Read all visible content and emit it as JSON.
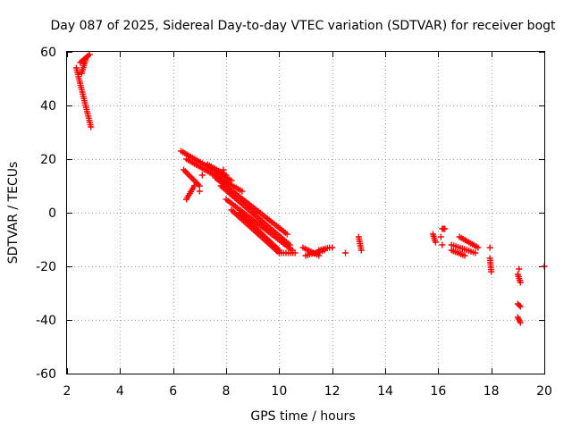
{
  "chart_data": {
    "type": "scatter",
    "title": "Day 087 of 2025, Sidereal Day-to-day VTEC variation (SDTVAR) for receiver bogt",
    "xlabel": "GPS time / hours",
    "ylabel": "SDTVAR / TECUs",
    "xlim": [
      2,
      20
    ],
    "ylim": [
      -60,
      60
    ],
    "xticks": [
      2,
      4,
      6,
      8,
      10,
      12,
      14,
      16,
      18,
      20
    ],
    "yticks": [
      -60,
      -40,
      -20,
      0,
      20,
      40,
      60
    ],
    "grid": true,
    "marker": "+",
    "marker_color": "#ff0000",
    "segments": [
      {
        "x": [
          2.35,
          2.9
        ],
        "y": [
          54,
          32
        ]
      },
      {
        "x": [
          2.5,
          2.85
        ],
        "y": [
          56,
          59
        ]
      },
      {
        "x": [
          2.55,
          2.7
        ],
        "y": [
          52,
          57
        ]
      },
      {
        "x": [
          6.3,
          8.2
        ],
        "y": [
          23,
          12
        ]
      },
      {
        "x": [
          6.5,
          8.6
        ],
        "y": [
          20,
          8
        ]
      },
      {
        "x": [
          6.4,
          7.0
        ],
        "y": [
          16,
          10
        ]
      },
      {
        "x": [
          6.5,
          6.8
        ],
        "y": [
          5,
          10
        ]
      },
      {
        "x": [
          7.3,
          8.0
        ],
        "y": [
          18,
          14
        ]
      },
      {
        "x": [
          7.6,
          10.3
        ],
        "y": [
          13,
          -8
        ]
      },
      {
        "x": [
          7.8,
          10.4
        ],
        "y": [
          10,
          -12
        ]
      },
      {
        "x": [
          8.0,
          10.5
        ],
        "y": [
          5,
          -14
        ]
      },
      {
        "x": [
          8.2,
          10.0
        ],
        "y": [
          1,
          -15
        ]
      },
      {
        "x": [
          8.5,
          10.0
        ],
        "y": [
          0,
          -14
        ]
      },
      {
        "x": [
          10.0,
          10.6
        ],
        "y": [
          -15,
          -15
        ]
      },
      {
        "x": [
          10.9,
          11.5
        ],
        "y": [
          -13,
          -16
        ]
      },
      {
        "x": [
          11.0,
          11.7
        ],
        "y": [
          -16,
          -14
        ]
      },
      {
        "x": [
          11.5,
          11.9
        ],
        "y": [
          -14,
          -13
        ]
      },
      {
        "x": [
          13.0,
          13.1
        ],
        "y": [
          -9,
          -14
        ]
      },
      {
        "x": [
          15.8,
          15.9
        ],
        "y": [
          -8,
          -11
        ]
      },
      {
        "x": [
          16.15,
          16.25
        ],
        "y": [
          -6,
          -6
        ]
      },
      {
        "x": [
          16.5,
          17.4
        ],
        "y": [
          -12,
          -15
        ]
      },
      {
        "x": [
          16.5,
          17.0
        ],
        "y": [
          -14,
          -16
        ]
      },
      {
        "x": [
          16.8,
          17.5
        ],
        "y": [
          -9,
          -13
        ]
      },
      {
        "x": [
          17.95,
          18.0
        ],
        "y": [
          -17,
          -22
        ]
      },
      {
        "x": [
          19.0,
          19.1
        ],
        "y": [
          -23,
          -26
        ]
      },
      {
        "x": [
          19.0,
          19.1
        ],
        "y": [
          -34,
          -35
        ]
      },
      {
        "x": [
          19.0,
          19.1
        ],
        "y": [
          -39,
          -41
        ]
      }
    ],
    "points": [
      {
        "x": 7.0,
        "y": 8
      },
      {
        "x": 7.1,
        "y": 14
      },
      {
        "x": 7.9,
        "y": 16
      },
      {
        "x": 12.0,
        "y": -13
      },
      {
        "x": 12.5,
        "y": -15
      },
      {
        "x": 16.1,
        "y": -9
      },
      {
        "x": 16.15,
        "y": -12
      },
      {
        "x": 17.95,
        "y": -13
      },
      {
        "x": 19.05,
        "y": -21
      },
      {
        "x": 20.0,
        "y": -20
      }
    ]
  }
}
